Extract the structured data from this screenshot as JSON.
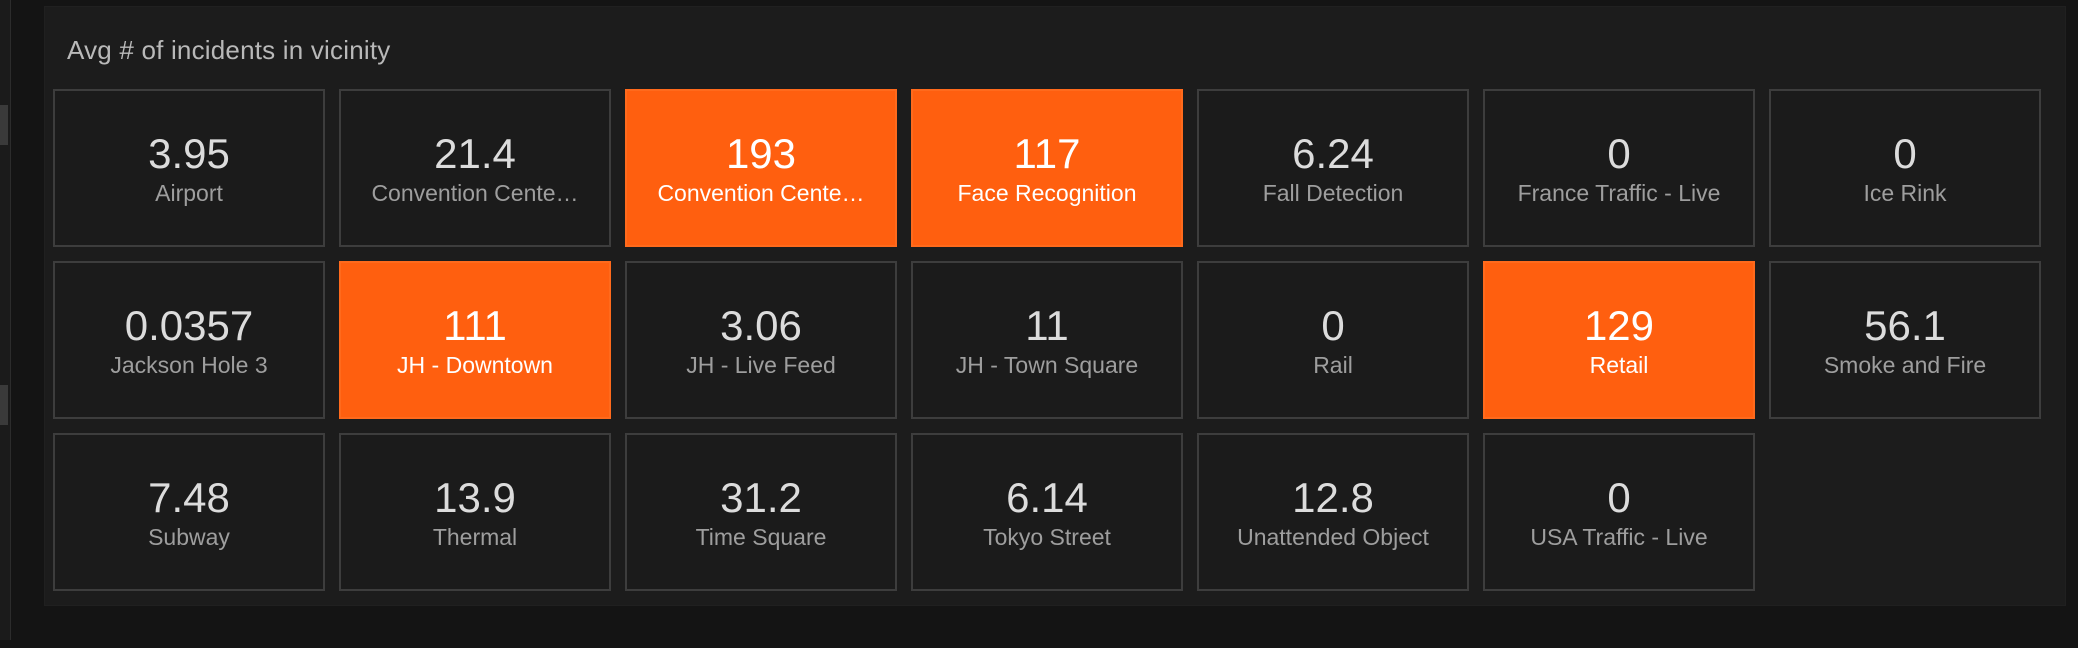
{
  "panel": {
    "title": "Avg # of incidents in vicinity"
  },
  "colors": {
    "background": "#141414",
    "panel": "#1c1c1c",
    "tile": "#1b1b1b",
    "tile_border": "#3d3d3d",
    "highlight": "#ff5f0f",
    "text_value": "#dcdcdc",
    "text_label": "#9e9e9e"
  },
  "tiles": [
    {
      "value": "3.95",
      "label": "Airport",
      "highlighted": false
    },
    {
      "value": "21.4",
      "label": "Convention Cente…",
      "highlighted": false
    },
    {
      "value": "193",
      "label": "Convention Cente…",
      "highlighted": true
    },
    {
      "value": "117",
      "label": "Face Recognition",
      "highlighted": true
    },
    {
      "value": "6.24",
      "label": "Fall Detection",
      "highlighted": false
    },
    {
      "value": "0",
      "label": "France Traffic - Live",
      "highlighted": false
    },
    {
      "value": "0",
      "label": "Ice Rink",
      "highlighted": false
    },
    {
      "value": "0.0357",
      "label": "Jackson Hole 3",
      "highlighted": false
    },
    {
      "value": "111",
      "label": "JH - Downtown",
      "highlighted": true
    },
    {
      "value": "3.06",
      "label": "JH - Live Feed",
      "highlighted": false
    },
    {
      "value": "11",
      "label": "JH - Town Square",
      "highlighted": false
    },
    {
      "value": "0",
      "label": "Rail",
      "highlighted": false
    },
    {
      "value": "129",
      "label": "Retail",
      "highlighted": true
    },
    {
      "value": "56.1",
      "label": "Smoke and Fire",
      "highlighted": false
    },
    {
      "value": "7.48",
      "label": "Subway",
      "highlighted": false
    },
    {
      "value": "13.9",
      "label": "Thermal",
      "highlighted": false
    },
    {
      "value": "31.2",
      "label": "Time Square",
      "highlighted": false
    },
    {
      "value": "6.14",
      "label": "Tokyo Street",
      "highlighted": false
    },
    {
      "value": "12.8",
      "label": "Unattended Object",
      "highlighted": false
    },
    {
      "value": "0",
      "label": "USA Traffic - Live",
      "highlighted": false
    }
  ]
}
